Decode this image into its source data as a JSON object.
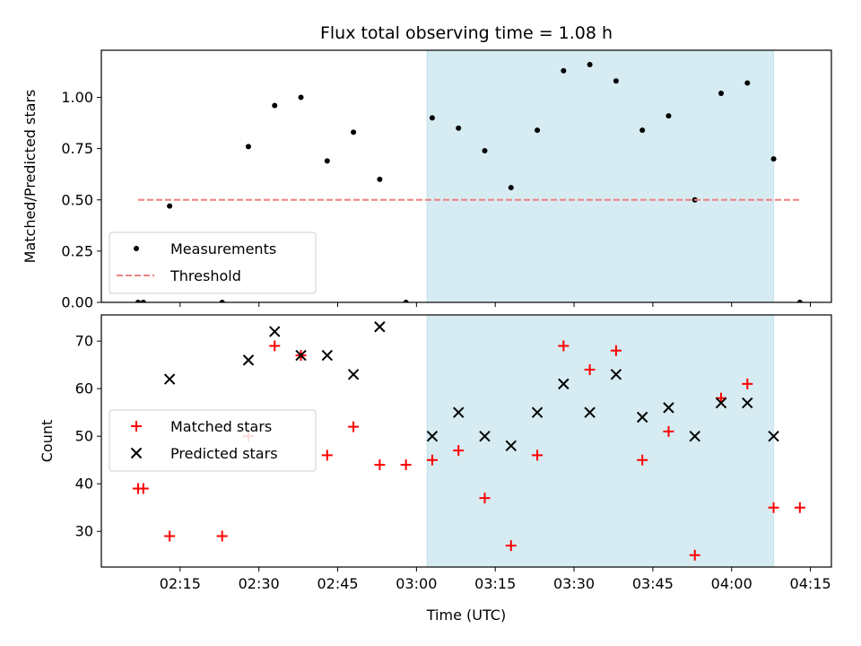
{
  "chart_data": [
    {
      "type": "scatter",
      "title": "Flux total observing time = 1.08 h",
      "ylabel": "Matched/Predicted stars",
      "xlabel": "",
      "ylim": [
        0,
        1.23
      ],
      "xlim": [
        "02:00",
        "04:19"
      ],
      "yticks": [
        0.0,
        0.25,
        0.5,
        0.75,
        1.0
      ],
      "ytick_labels": [
        "0.00",
        "0.25",
        "0.50",
        "0.75",
        "1.00"
      ],
      "legend_position": "lower-left",
      "shaded_region": {
        "from": "03:02",
        "to": "04:08",
        "color": "#add8e6"
      },
      "series": [
        {
          "name": "Measurements",
          "kind": "points",
          "color": "#000000",
          "points": [
            [
              "02:07",
              0.0
            ],
            [
              "02:08",
              0.0
            ],
            [
              "02:13",
              0.47
            ],
            [
              "02:23",
              0.0
            ],
            [
              "02:28",
              0.76
            ],
            [
              "02:33",
              0.96
            ],
            [
              "02:38",
              1.0
            ],
            [
              "02:43",
              0.69
            ],
            [
              "02:48",
              0.83
            ],
            [
              "02:53",
              0.6
            ],
            [
              "02:58",
              0.0
            ],
            [
              "03:03",
              0.9
            ],
            [
              "03:08",
              0.85
            ],
            [
              "03:13",
              0.74
            ],
            [
              "03:18",
              0.56
            ],
            [
              "03:23",
              0.84
            ],
            [
              "03:28",
              1.13
            ],
            [
              "03:33",
              1.16
            ],
            [
              "03:38",
              1.08
            ],
            [
              "03:43",
              0.84
            ],
            [
              "03:48",
              0.91
            ],
            [
              "03:53",
              0.5
            ],
            [
              "03:58",
              1.02
            ],
            [
              "04:03",
              1.07
            ],
            [
              "04:08",
              0.7
            ],
            [
              "04:13",
              0.0
            ]
          ]
        },
        {
          "name": "Threshold",
          "kind": "dashed-line",
          "color": "#f08080",
          "points": [
            [
              "02:07",
              0.5
            ],
            [
              "04:13",
              0.5
            ]
          ]
        }
      ]
    },
    {
      "type": "scatter",
      "title": "",
      "ylabel": "Count",
      "xlabel": "Time (UTC)",
      "ylim": [
        22.5,
        75.5
      ],
      "xlim": [
        "02:00",
        "04:19"
      ],
      "yticks": [
        30,
        40,
        50,
        60,
        70
      ],
      "ytick_labels": [
        "30",
        "40",
        "50",
        "60",
        "70"
      ],
      "xticks": [
        "02:15",
        "02:30",
        "02:45",
        "03:00",
        "03:15",
        "03:30",
        "03:45",
        "04:00",
        "04:15"
      ],
      "legend_position": "center-left",
      "shaded_region": {
        "from": "03:02",
        "to": "04:08",
        "color": "#add8e6"
      },
      "series": [
        {
          "name": "Matched stars",
          "kind": "plus",
          "color": "#ff0000",
          "points": [
            [
              "02:07",
              39
            ],
            [
              "02:08",
              39
            ],
            [
              "02:13",
              29
            ],
            [
              "02:23",
              29
            ],
            [
              "02:28",
              50
            ],
            [
              "02:33",
              69
            ],
            [
              "02:38",
              67
            ],
            [
              "02:43",
              46
            ],
            [
              "02:48",
              52
            ],
            [
              "02:53",
              44
            ],
            [
              "02:58",
              44
            ],
            [
              "03:03",
              45
            ],
            [
              "03:08",
              47
            ],
            [
              "03:13",
              37
            ],
            [
              "03:18",
              27
            ],
            [
              "03:23",
              46
            ],
            [
              "03:28",
              69
            ],
            [
              "03:33",
              64
            ],
            [
              "03:38",
              68
            ],
            [
              "03:43",
              45
            ],
            [
              "03:48",
              51
            ],
            [
              "03:53",
              25
            ],
            [
              "03:58",
              58
            ],
            [
              "04:03",
              61
            ],
            [
              "04:08",
              35
            ],
            [
              "04:13",
              35
            ]
          ]
        },
        {
          "name": "Predicted stars",
          "kind": "x",
          "color": "#000000",
          "points": [
            [
              "02:13",
              62
            ],
            [
              "02:28",
              66
            ],
            [
              "02:33",
              72
            ],
            [
              "02:38",
              67
            ],
            [
              "02:43",
              67
            ],
            [
              "02:48",
              63
            ],
            [
              "02:53",
              73
            ],
            [
              "03:03",
              50
            ],
            [
              "03:08",
              55
            ],
            [
              "03:13",
              50
            ],
            [
              "03:18",
              48
            ],
            [
              "03:23",
              55
            ],
            [
              "03:28",
              61
            ],
            [
              "03:33",
              55
            ],
            [
              "03:38",
              63
            ],
            [
              "03:43",
              54
            ],
            [
              "03:48",
              56
            ],
            [
              "03:53",
              50
            ],
            [
              "03:58",
              57
            ],
            [
              "04:03",
              57
            ],
            [
              "04:08",
              50
            ]
          ]
        }
      ]
    }
  ]
}
